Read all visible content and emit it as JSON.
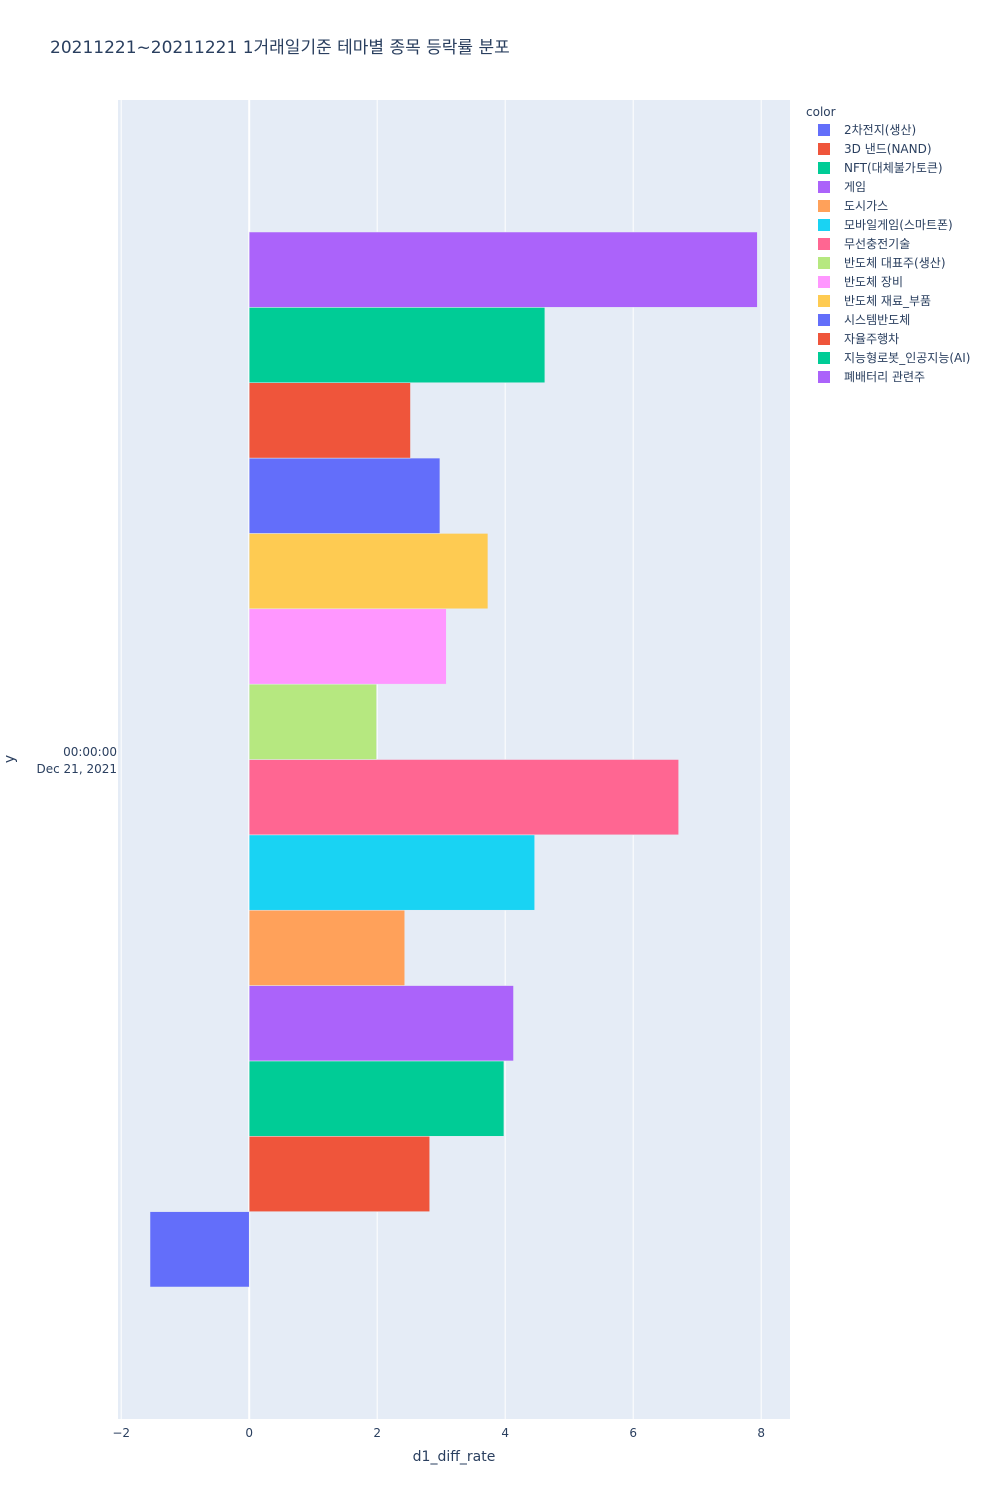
{
  "chart_data": {
    "type": "bar",
    "orientation": "horizontal",
    "barmode": "group",
    "title": "20211221~20211221 1거래일기준 테마별 종목 등락률 분포",
    "xlabel": "d1_diff_rate",
    "ylabel": "y",
    "category_label": [
      "00:00:00",
      "Dec 21, 2021"
    ],
    "xlim": [
      -2.05,
      8.45
    ],
    "xticks": [
      -2,
      0,
      2,
      4,
      6,
      8
    ],
    "xtick_labels": [
      "−2",
      "0",
      "2",
      "4",
      "6",
      "8"
    ],
    "grid": true,
    "legend_title": "color",
    "legend_position": "top-right",
    "series": [
      {
        "name": "2차전지(생산)",
        "value": -1.55,
        "color": "#636efa"
      },
      {
        "name": "3D 낸드(NAND)",
        "value": 2.82,
        "color": "#ef553b"
      },
      {
        "name": "NFT(대체불가토큰)",
        "value": 3.98,
        "color": "#00cc96"
      },
      {
        "name": "게임",
        "value": 4.13,
        "color": "#ab63fa"
      },
      {
        "name": "도시가스",
        "value": 2.43,
        "color": "#ffa15a"
      },
      {
        "name": "모바일게임(스마트폰)",
        "value": 4.46,
        "color": "#19d3f3"
      },
      {
        "name": "무선충전기술",
        "value": 6.71,
        "color": "#ff6692"
      },
      {
        "name": "반도체 대표주(생산)",
        "value": 1.99,
        "color": "#b6e880"
      },
      {
        "name": "반도체 장비",
        "value": 3.08,
        "color": "#ff97ff"
      },
      {
        "name": "반도체 재료_부품",
        "value": 3.73,
        "color": "#fecb52"
      },
      {
        "name": "시스템반도체",
        "value": 2.98,
        "color": "#636efa"
      },
      {
        "name": "자율주행차",
        "value": 2.52,
        "color": "#ef553b"
      },
      {
        "name": "지능형로봇_인공지능(AI)",
        "value": 4.62,
        "color": "#00cc96"
      },
      {
        "name": "폐배터리 관련주",
        "value": 7.94,
        "color": "#ab63fa"
      }
    ]
  }
}
